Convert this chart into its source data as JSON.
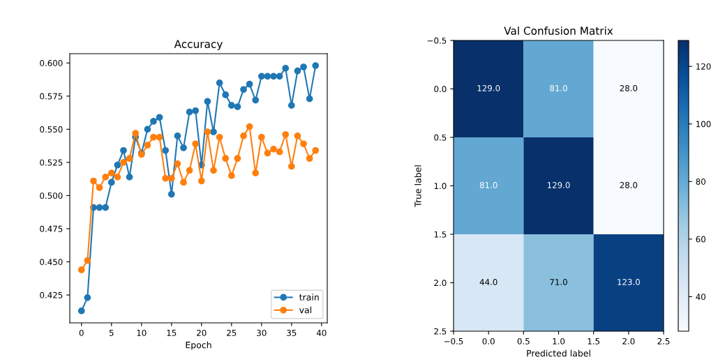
{
  "chart_data": [
    {
      "type": "line",
      "title": "Accuracy",
      "xlabel": "Epoch",
      "x": [
        0,
        1,
        2,
        3,
        4,
        5,
        6,
        7,
        8,
        9,
        10,
        11,
        12,
        13,
        14,
        15,
        16,
        17,
        18,
        19,
        20,
        21,
        22,
        23,
        24,
        25,
        26,
        27,
        28,
        29,
        30,
        31,
        32,
        33,
        34,
        35,
        36,
        37,
        38,
        39
      ],
      "series": [
        {
          "name": "train",
          "color": "#1f77b4",
          "values": [
            0.413,
            0.423,
            0.491,
            0.491,
            0.491,
            0.51,
            0.523,
            0.534,
            0.514,
            0.544,
            0.532,
            0.55,
            0.556,
            0.559,
            0.534,
            0.501,
            0.545,
            0.536,
            0.563,
            0.564,
            0.523,
            0.571,
            0.548,
            0.585,
            0.576,
            0.568,
            0.567,
            0.58,
            0.584,
            0.572,
            0.59,
            0.59,
            0.59,
            0.59,
            0.596,
            0.568,
            0.594,
            0.597,
            0.573,
            0.598
          ]
        },
        {
          "name": "val",
          "color": "#ff7f0e",
          "values": [
            0.444,
            0.451,
            0.511,
            0.506,
            0.514,
            0.517,
            0.514,
            0.525,
            0.528,
            0.547,
            0.531,
            0.538,
            0.544,
            0.544,
            0.513,
            0.513,
            0.524,
            0.51,
            0.519,
            0.539,
            0.511,
            0.548,
            0.519,
            0.544,
            0.528,
            0.515,
            0.528,
            0.545,
            0.552,
            0.517,
            0.544,
            0.532,
            0.535,
            0.533,
            0.546,
            0.522,
            0.545,
            0.539,
            0.528,
            0.534
          ]
        }
      ],
      "xlim": [
        -1.95,
        40.95
      ],
      "ylim": [
        0.404,
        0.607
      ],
      "xticks": [
        0,
        5,
        10,
        15,
        20,
        25,
        30,
        35,
        40
      ],
      "yticks": [
        {
          "value": 0.425,
          "label": "0.425"
        },
        {
          "value": 0.45,
          "label": "0.450"
        },
        {
          "value": 0.475,
          "label": "0.475"
        },
        {
          "value": 0.5,
          "label": "0.500"
        },
        {
          "value": 0.525,
          "label": "0.525"
        },
        {
          "value": 0.55,
          "label": "0.550"
        },
        {
          "value": 0.575,
          "label": "0.575"
        },
        {
          "value": 0.6,
          "label": "0.600"
        }
      ],
      "marker": "circle",
      "line_style": "solid",
      "legend": "bottom right",
      "grid": false
    },
    {
      "type": "heatmap",
      "title": "Val Confusion Matrix",
      "xlabel": "Predicted label",
      "ylabel": "True label",
      "cells": [
        [
          129,
          81,
          28
        ],
        [
          81,
          129,
          28
        ],
        [
          44,
          71,
          123
        ]
      ],
      "cell_labels": [
        [
          "129.0",
          "81.0",
          "28.0"
        ],
        [
          "81.0",
          "129.0",
          "28.0"
        ],
        [
          "44.0",
          "71.0",
          "123.0"
        ]
      ],
      "xlim": [
        -0.5,
        2.5
      ],
      "ylim": [
        2.5,
        -0.5
      ],
      "xticks": [
        {
          "value": -0.5,
          "label": "−0.5"
        },
        {
          "value": 0,
          "label": "0.0"
        },
        {
          "value": 0.5,
          "label": "0.5"
        },
        {
          "value": 1,
          "label": "1.0"
        },
        {
          "value": 1.5,
          "label": "1.5"
        },
        {
          "value": 2,
          "label": "2.0"
        },
        {
          "value": 2.5,
          "label": "2.5"
        }
      ],
      "yticks": [
        {
          "value": -0.5,
          "label": "−0.5"
        },
        {
          "value": 0,
          "label": "0.0"
        },
        {
          "value": 0.5,
          "label": "0.5"
        },
        {
          "value": 1,
          "label": "1.0"
        },
        {
          "value": 1.5,
          "label": "1.5"
        },
        {
          "value": 2,
          "label": "2.0"
        },
        {
          "value": 2.5,
          "label": "2.5"
        }
      ],
      "clim": [
        28,
        129
      ],
      "cticks": [
        40,
        60,
        80,
        100,
        120
      ]
    }
  ]
}
